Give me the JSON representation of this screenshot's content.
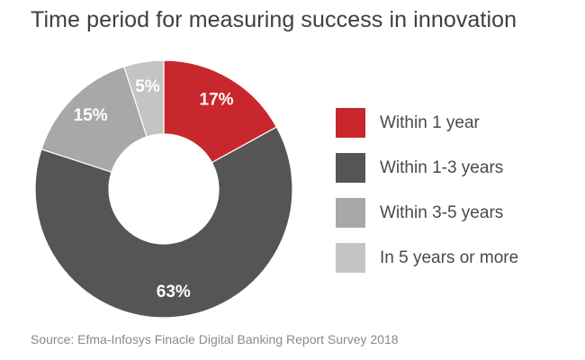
{
  "chart_data": {
    "type": "pie",
    "title": "Time period for measuring  success in innovation",
    "categories": [
      "Within 1 year",
      "Within 1-3 years",
      "Within 3-5 years",
      "In 5 years or more"
    ],
    "values": [
      17,
      63,
      15,
      5
    ],
    "value_labels": [
      "17%",
      "63%",
      "15%",
      "5%"
    ],
    "colors": [
      "#c8282d",
      "#555555",
      "#a8a8a8",
      "#c4c4c4"
    ],
    "hole": true,
    "legend_position": "right",
    "source": "Source: Efma-Infosys Finacle Digital Banking Report Survey 2018"
  }
}
